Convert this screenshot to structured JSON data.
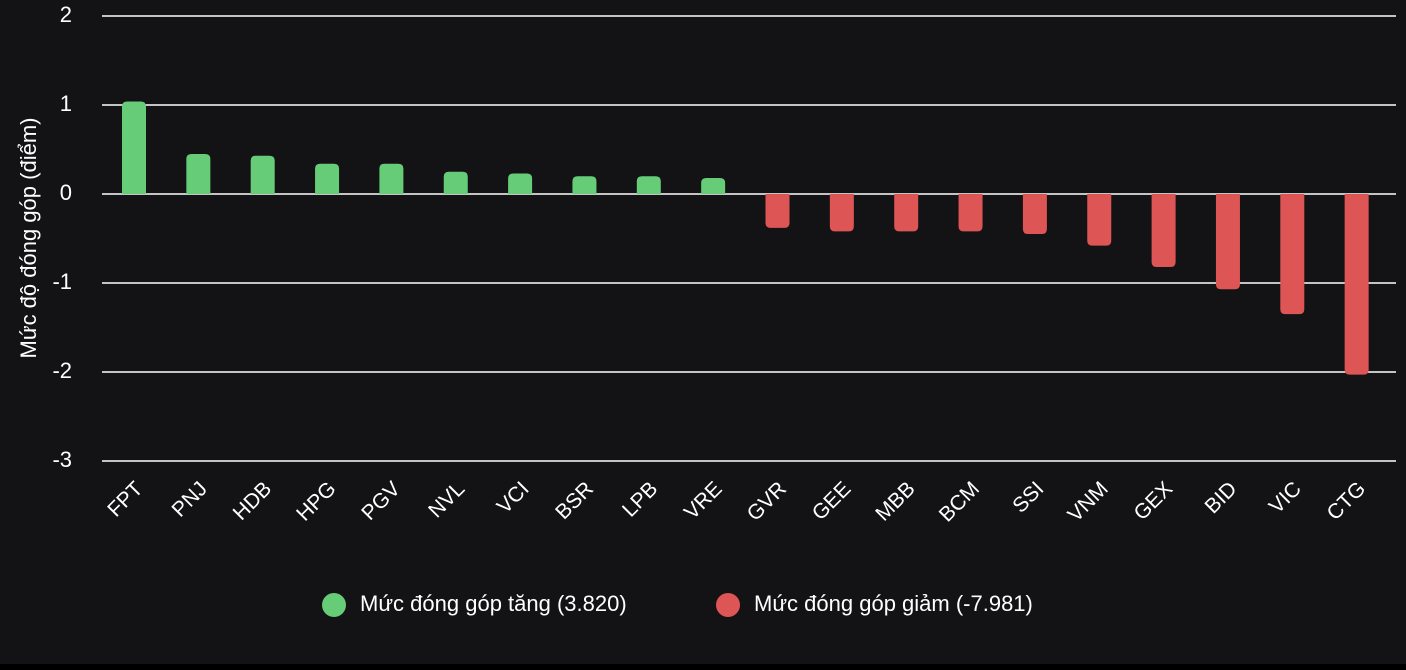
{
  "chart_data": {
    "type": "bar",
    "ylabel": "Mức độ đóng góp (điểm)",
    "xlabel": "",
    "ylim": [
      -3,
      2
    ],
    "yticks": [
      "2",
      "1",
      "0",
      "-1",
      "-2",
      "-3"
    ],
    "grid": true,
    "legend_position": "bottom",
    "categories": [
      "FPT",
      "PNJ",
      "HDB",
      "HPG",
      "PGV",
      "NVL",
      "VCI",
      "BSR",
      "LPB",
      "VRE",
      "GVR",
      "GEE",
      "MBB",
      "BCM",
      "SSI",
      "VNM",
      "GEX",
      "BID",
      "VIC",
      "CTG"
    ],
    "series": [
      {
        "name": "Mức đóng góp tăng (3.820)",
        "color": "#66cc77",
        "values": [
          1.04,
          0.45,
          0.43,
          0.34,
          0.34,
          0.25,
          0.23,
          0.2,
          0.2,
          0.18,
          null,
          null,
          null,
          null,
          null,
          null,
          null,
          null,
          null,
          null
        ]
      },
      {
        "name": "Mức đóng góp giảm (-7.981)",
        "color": "#dd5555",
        "values": [
          null,
          null,
          null,
          null,
          null,
          null,
          null,
          null,
          null,
          null,
          -0.38,
          -0.42,
          -0.42,
          -0.42,
          -0.45,
          -0.58,
          -0.82,
          -1.07,
          -1.35,
          -2.03
        ]
      }
    ]
  },
  "theme": {
    "background": "#131316",
    "grid_color": "#ffffff",
    "text_color": "#ffffff"
  }
}
